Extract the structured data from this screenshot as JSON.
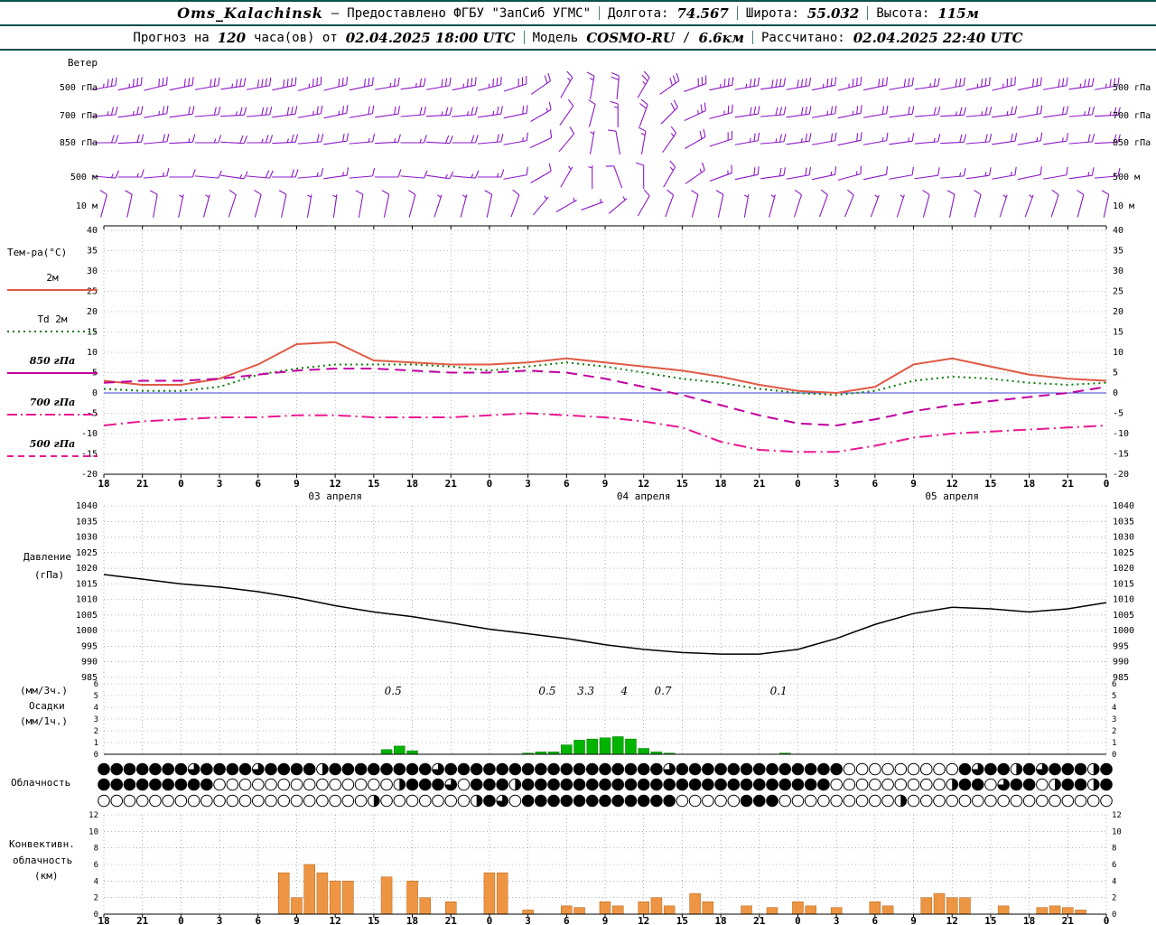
{
  "header": {
    "station": "Oms_Kalachinsk",
    "dash": "—",
    "provided": "Предоставлено ФГБУ \"ЗапСиб УГМС\"",
    "lon_label": "Долгота:",
    "lon_value": "74.567",
    "lat_label": "Широта:",
    "lat_value": "55.032",
    "alt_label": "Высота:",
    "alt_value": "115м",
    "forecast_label_1": "Прогноз на",
    "forecast_hours": "120",
    "forecast_label_2": "часа(ов) от",
    "run_datetime": "02.04.2025 18:00 UTC",
    "model_label": "Модель",
    "model_name": "COSMO-RU",
    "model_sep": "/",
    "model_res": "6.6км",
    "calc_label": "Рассчитано:",
    "calc_datetime": "02.04.2025 22:40 UTC"
  },
  "axis": {
    "hours_total": 78,
    "tick_step_hours": 3,
    "hour_labels": [
      "18",
      "21",
      "0",
      "3",
      "6",
      "9",
      "12",
      "15",
      "18",
      "21",
      "0",
      "3",
      "6",
      "9",
      "12",
      "15",
      "18",
      "21",
      "0",
      "3",
      "6",
      "9",
      "12",
      "15",
      "18",
      "21",
      "0"
    ],
    "date_labels": [
      {
        "text": "03 апреля",
        "hour": 18
      },
      {
        "text": "04 апреля",
        "hour": 42
      },
      {
        "text": "05 апреля",
        "hour": 66
      }
    ]
  },
  "chart_data": [
    {
      "id": "wind",
      "type": "wind-barbs",
      "title": "Ветер",
      "color": "#8d18c8",
      "x_step_hours": 2,
      "levels": [
        {
          "label": "500 гПа",
          "angles": [
            10,
            12,
            14,
            12,
            10,
            8,
            10,
            12,
            15,
            14,
            12,
            10,
            8,
            10,
            12,
            14,
            18,
            35,
            60,
            80,
            85,
            60,
            35,
            20,
            12,
            10,
            8,
            10,
            12,
            14,
            12,
            10,
            8,
            10,
            12,
            14,
            12,
            10,
            8,
            10
          ],
          "speeds": [
            35,
            35,
            30,
            30,
            30,
            35,
            40,
            40,
            35,
            30,
            30,
            25,
            25,
            30,
            35,
            35,
            30,
            20,
            15,
            15,
            20,
            25,
            30,
            30,
            35,
            35,
            40,
            40,
            35,
            35,
            30,
            30,
            25,
            30,
            35,
            35,
            30,
            30,
            35,
            35
          ]
        },
        {
          "label": "700 гПа",
          "angles": [
            5,
            8,
            10,
            8,
            5,
            3,
            5,
            8,
            10,
            12,
            10,
            8,
            5,
            3,
            5,
            8,
            12,
            30,
            55,
            75,
            90,
            70,
            45,
            25,
            15,
            8,
            5,
            8,
            10,
            12,
            10,
            8,
            5,
            3,
            5,
            8,
            10,
            8,
            5,
            3
          ],
          "speeds": [
            25,
            25,
            25,
            20,
            20,
            25,
            30,
            30,
            25,
            25,
            20,
            20,
            20,
            25,
            25,
            25,
            20,
            15,
            10,
            10,
            15,
            20,
            20,
            25,
            25,
            30,
            30,
            30,
            25,
            25,
            20,
            20,
            20,
            25,
            25,
            25,
            20,
            20,
            25,
            25
          ]
        },
        {
          "label": "850 гПа",
          "angles": [
            0,
            3,
            5,
            3,
            0,
            -3,
            0,
            3,
            5,
            8,
            5,
            3,
            0,
            -3,
            0,
            5,
            10,
            25,
            50,
            80,
            100,
            80,
            55,
            30,
            18,
            10,
            5,
            8,
            10,
            12,
            10,
            8,
            5,
            3,
            5,
            8,
            10,
            8,
            5,
            3
          ],
          "speeds": [
            20,
            20,
            20,
            15,
            15,
            20,
            25,
            25,
            20,
            20,
            15,
            15,
            15,
            20,
            20,
            20,
            15,
            10,
            10,
            5,
            10,
            15,
            15,
            20,
            20,
            25,
            25,
            25,
            20,
            20,
            15,
            15,
            15,
            20,
            20,
            20,
            15,
            15,
            20,
            20
          ]
        },
        {
          "label": "500 м",
          "angles": [
            -5,
            0,
            5,
            0,
            -5,
            -8,
            -5,
            0,
            5,
            8,
            5,
            0,
            -5,
            -8,
            -5,
            0,
            10,
            30,
            60,
            90,
            110,
            90,
            60,
            35,
            20,
            12,
            8,
            10,
            12,
            15,
            12,
            10,
            8,
            5,
            8,
            10,
            12,
            10,
            8,
            5
          ],
          "speeds": [
            15,
            15,
            15,
            10,
            10,
            15,
            20,
            20,
            15,
            15,
            10,
            10,
            10,
            15,
            15,
            15,
            10,
            10,
            5,
            5,
            10,
            10,
            15,
            15,
            15,
            20,
            20,
            20,
            15,
            15,
            10,
            10,
            10,
            15,
            15,
            15,
            10,
            10,
            15,
            15
          ]
        },
        {
          "label": "10 м",
          "angles": [
            75,
            78,
            80,
            78,
            75,
            72,
            75,
            78,
            80,
            82,
            80,
            78,
            75,
            72,
            75,
            78,
            70,
            50,
            30,
            20,
            40,
            60,
            70,
            75,
            78,
            80,
            75,
            72,
            70,
            68,
            70,
            72,
            75,
            78,
            75,
            72,
            70,
            72,
            75,
            78
          ],
          "speeds": [
            10,
            10,
            10,
            5,
            5,
            10,
            10,
            10,
            5,
            5,
            10,
            10,
            10,
            5,
            5,
            10,
            10,
            5,
            5,
            5,
            5,
            10,
            10,
            10,
            10,
            5,
            5,
            10,
            10,
            10,
            5,
            5,
            10,
            10,
            10,
            5,
            5,
            10,
            10,
            10
          ]
        }
      ]
    },
    {
      "id": "temperature",
      "type": "line",
      "title": "Тем-ра(°C)",
      "ylim": [
        -20,
        40
      ],
      "ytick": 5,
      "x_step_hours": 3,
      "zero_line_color": "#3c3cd0",
      "series": [
        {
          "name": "2м",
          "color": "#e05a45",
          "dash": "",
          "width": 2,
          "legend_style": "solid",
          "values": [
            3,
            2,
            2,
            3.5,
            7,
            12,
            12.5,
            8,
            7.5,
            7,
            7,
            7.5,
            8.5,
            7.5,
            6.5,
            5.5,
            4,
            2,
            0.5,
            0,
            1.5,
            7,
            8.5,
            6.5,
            4.5,
            3.5,
            3
          ]
        },
        {
          "name": "Td 2м",
          "color": "#0a7d0a",
          "dash": "2 4",
          "width": 2,
          "legend_style": "dotted",
          "values": [
            1,
            0.5,
            0.5,
            1.5,
            4.5,
            6,
            7,
            7,
            7,
            6.5,
            5.5,
            6.5,
            7.5,
            6.5,
            5,
            3.5,
            2.5,
            1,
            0,
            -0.5,
            0.5,
            3,
            4,
            3.5,
            2.5,
            2,
            2.5
          ]
        },
        {
          "name": "850 гПа",
          "color": "#c000a0",
          "dash": "12 7",
          "width": 2,
          "legend_style": "solid",
          "values": [
            2.5,
            3,
            3,
            3.5,
            4.5,
            5.5,
            6,
            6,
            5.5,
            5,
            5,
            5.5,
            5,
            3.5,
            1.5,
            -0.5,
            -3,
            -5.5,
            -7.5,
            -8,
            -6.5,
            -4.5,
            -3,
            -2,
            -1,
            0,
            1.5
          ]
        },
        {
          "name": "700 гПа",
          "color": "#ea1890",
          "dash": "14 5 2 5",
          "width": 2,
          "legend_style": "dashdot",
          "values": [
            -8,
            -7,
            -6.5,
            -6,
            -6,
            -5.5,
            -5.5,
            -6,
            -6,
            -6,
            -5.5,
            -5,
            -5.5,
            -6,
            -7,
            -8.5,
            -12,
            -14,
            -14.5,
            -14.5,
            -13,
            -11,
            -10,
            -9.5,
            -9,
            -8.5,
            -8
          ]
        },
        {
          "name": "500 гПа",
          "color": "#ea1890",
          "dash": "6 5",
          "width": 1.5,
          "legend_style": "dashed",
          "values": []
        }
      ]
    },
    {
      "id": "pressure",
      "type": "line",
      "title_lines": [
        "Давление",
        "(гПа)"
      ],
      "ylim": [
        985,
        1040
      ],
      "ytick": 5,
      "x_step_hours": 3,
      "series": [
        {
          "name": "Давление",
          "color": "#000000",
          "dash": "",
          "width": 1.5,
          "values": [
            1018,
            1016.5,
            1015,
            1014,
            1012.5,
            1010.5,
            1008,
            1006,
            1004.5,
            1002.5,
            1000.5,
            999,
            997.5,
            995.5,
            994,
            993,
            992.5,
            992.5,
            994,
            997.5,
            1002,
            1005.5,
            1007.5,
            1007,
            1006,
            1007,
            1009
          ]
        }
      ]
    },
    {
      "id": "precip",
      "type": "bar",
      "title_lines": [
        "(мм/3ч.)",
        "Осадки",
        "(мм/1ч.)"
      ],
      "ylim": [
        0,
        6
      ],
      "ytick": 1,
      "color": "#00b400",
      "edge": "#007700",
      "bars": [
        [
          22,
          0.4
        ],
        [
          23,
          0.7
        ],
        [
          24,
          0.3
        ],
        [
          33,
          0.1
        ],
        [
          34,
          0.2
        ],
        [
          35,
          0.2
        ],
        [
          36,
          0.8
        ],
        [
          37,
          1.2
        ],
        [
          38,
          1.3
        ],
        [
          39,
          1.4
        ],
        [
          40,
          1.5
        ],
        [
          41,
          1.3
        ],
        [
          42,
          0.5
        ],
        [
          43,
          0.2
        ],
        [
          44,
          0.1
        ],
        [
          53,
          0.1
        ]
      ],
      "labels_3h": [
        [
          22.5,
          "0.5"
        ],
        [
          34.5,
          "0.5"
        ],
        [
          37.5,
          "3.3"
        ],
        [
          40.5,
          "4"
        ],
        [
          43.5,
          "0.7"
        ],
        [
          52.5,
          "0.1"
        ]
      ]
    },
    {
      "id": "cloud",
      "type": "symbol-rows",
      "title": "Облачность",
      "encoding": {
        "0": 0,
        "1": 0.25,
        "2": 0.5,
        "3": 0.75,
        "4": 1
      },
      "rows": [
        "4444444344443444424444444434444444444444444434444444444444000000000434424344424",
        "4444444440000000000000024443044424444444444444444444444440000000002440344024424",
        "0000000000000000000002000000024304444444444440000044400000000020000000000000000"
      ]
    },
    {
      "id": "convective",
      "type": "bar",
      "title_lines": [
        "Конвективн.",
        "облачность",
        "(км)"
      ],
      "ylim": [
        0,
        12
      ],
      "ytick": 2,
      "color": "#ee9544",
      "edge": "#b06010",
      "bars": [
        [
          14,
          5
        ],
        [
          15,
          2
        ],
        [
          16,
          6
        ],
        [
          17,
          5
        ],
        [
          18,
          4
        ],
        [
          19,
          4
        ],
        [
          22,
          4.5
        ],
        [
          24,
          4
        ],
        [
          25,
          2
        ],
        [
          27,
          1.5
        ],
        [
          30,
          5
        ],
        [
          31,
          5
        ],
        [
          33,
          0.5
        ],
        [
          36,
          1
        ],
        [
          37,
          0.8
        ],
        [
          39,
          1.5
        ],
        [
          40,
          1
        ],
        [
          42,
          1.5
        ],
        [
          43,
          2
        ],
        [
          44,
          1
        ],
        [
          46,
          2.5
        ],
        [
          47,
          1.5
        ],
        [
          50,
          1
        ],
        [
          52,
          0.8
        ],
        [
          54,
          1.5
        ],
        [
          55,
          1
        ],
        [
          57,
          0.8
        ],
        [
          60,
          1.5
        ],
        [
          61,
          1
        ],
        [
          64,
          2
        ],
        [
          65,
          2.5
        ],
        [
          66,
          2
        ],
        [
          67,
          2
        ],
        [
          70,
          1
        ],
        [
          73,
          0.8
        ],
        [
          74,
          1
        ],
        [
          75,
          0.8
        ],
        [
          76,
          0.5
        ]
      ]
    }
  ]
}
